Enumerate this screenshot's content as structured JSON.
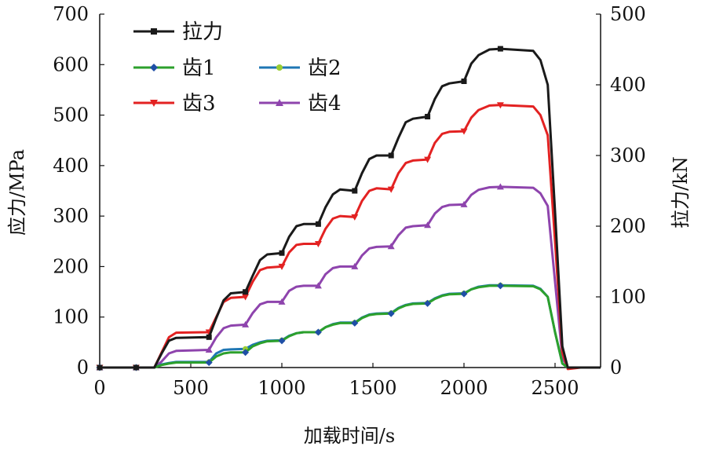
{
  "chart_data": {
    "type": "line",
    "xlabel": "加载时间/s",
    "ylabel": "应力/MPa",
    "y2label": "拉力/kN",
    "xlim": [
      0,
      2750
    ],
    "ylim": [
      0,
      700
    ],
    "y2lim": [
      0,
      500
    ],
    "x_ticks": [
      "0",
      "500",
      "1000",
      "1500",
      "2000",
      "2500"
    ],
    "y_ticks": [
      "0",
      "100",
      "200",
      "300",
      "400",
      "500",
      "600",
      "700"
    ],
    "y2_ticks": [
      "0",
      "100",
      "200",
      "300",
      "400",
      "500"
    ],
    "grid": false,
    "legend_position": "top-left",
    "series": [
      {
        "name": "拉力",
        "axis": "right",
        "color": "#1a1a1a",
        "marker": "square",
        "points": [
          [
            0,
            0
          ],
          [
            200,
            0
          ],
          [
            300,
            0
          ],
          [
            340,
            20
          ],
          [
            380,
            38
          ],
          [
            420,
            42
          ],
          [
            600,
            43
          ],
          [
            640,
            70
          ],
          [
            680,
            95
          ],
          [
            720,
            105
          ],
          [
            800,
            107
          ],
          [
            840,
            130
          ],
          [
            880,
            152
          ],
          [
            920,
            160
          ],
          [
            1000,
            162
          ],
          [
            1040,
            185
          ],
          [
            1080,
            200
          ],
          [
            1120,
            203
          ],
          [
            1200,
            203
          ],
          [
            1240,
            227
          ],
          [
            1280,
            245
          ],
          [
            1320,
            252
          ],
          [
            1400,
            250
          ],
          [
            1440,
            275
          ],
          [
            1480,
            295
          ],
          [
            1520,
            300
          ],
          [
            1600,
            300
          ],
          [
            1640,
            325
          ],
          [
            1680,
            347
          ],
          [
            1720,
            352
          ],
          [
            1800,
            355
          ],
          [
            1840,
            380
          ],
          [
            1880,
            398
          ],
          [
            1920,
            402
          ],
          [
            2000,
            405
          ],
          [
            2040,
            430
          ],
          [
            2080,
            442
          ],
          [
            2140,
            450
          ],
          [
            2200,
            451
          ],
          [
            2380,
            448
          ],
          [
            2420,
            435
          ],
          [
            2460,
            400
          ],
          [
            2500,
            220
          ],
          [
            2540,
            30
          ],
          [
            2570,
            0
          ],
          [
            2640,
            0
          ],
          [
            2750,
            0
          ]
        ]
      },
      {
        "name": "齿1",
        "axis": "left",
        "color": "#2ca02c",
        "marker": "diamond",
        "marker_color": "#1f4fa6",
        "points": [
          [
            0,
            0
          ],
          [
            200,
            0
          ],
          [
            300,
            0
          ],
          [
            340,
            5
          ],
          [
            380,
            8
          ],
          [
            420,
            10
          ],
          [
            600,
            10
          ],
          [
            640,
            22
          ],
          [
            680,
            28
          ],
          [
            720,
            30
          ],
          [
            800,
            30
          ],
          [
            840,
            42
          ],
          [
            880,
            48
          ],
          [
            920,
            52
          ],
          [
            1000,
            53
          ],
          [
            1040,
            62
          ],
          [
            1080,
            68
          ],
          [
            1120,
            70
          ],
          [
            1200,
            70
          ],
          [
            1240,
            80
          ],
          [
            1280,
            85
          ],
          [
            1320,
            88
          ],
          [
            1400,
            88
          ],
          [
            1440,
            98
          ],
          [
            1480,
            104
          ],
          [
            1520,
            106
          ],
          [
            1600,
            107
          ],
          [
            1640,
            117
          ],
          [
            1680,
            123
          ],
          [
            1720,
            126
          ],
          [
            1800,
            127
          ],
          [
            1840,
            136
          ],
          [
            1880,
            142
          ],
          [
            1920,
            145
          ],
          [
            2000,
            146
          ],
          [
            2040,
            155
          ],
          [
            2080,
            159
          ],
          [
            2140,
            162
          ],
          [
            2200,
            162
          ],
          [
            2380,
            161
          ],
          [
            2420,
            155
          ],
          [
            2460,
            140
          ],
          [
            2500,
            70
          ],
          [
            2540,
            8
          ],
          [
            2570,
            0
          ],
          [
            2640,
            0
          ],
          [
            2750,
            0
          ]
        ]
      },
      {
        "name": "齿2",
        "axis": "left",
        "color": "#1f77b4",
        "marker": "circle",
        "marker_color": "#9acd32",
        "points": [
          [
            0,
            0
          ],
          [
            200,
            0
          ],
          [
            300,
            0
          ],
          [
            340,
            6
          ],
          [
            380,
            9
          ],
          [
            420,
            11
          ],
          [
            600,
            11
          ],
          [
            640,
            28
          ],
          [
            680,
            35
          ],
          [
            720,
            36
          ],
          [
            800,
            37
          ],
          [
            840,
            45
          ],
          [
            880,
            50
          ],
          [
            920,
            53
          ],
          [
            1000,
            54
          ],
          [
            1040,
            63
          ],
          [
            1080,
            68
          ],
          [
            1120,
            70
          ],
          [
            1200,
            70
          ],
          [
            1240,
            80
          ],
          [
            1280,
            86
          ],
          [
            1320,
            89
          ],
          [
            1400,
            89
          ],
          [
            1440,
            99
          ],
          [
            1480,
            105
          ],
          [
            1520,
            107
          ],
          [
            1600,
            108
          ],
          [
            1640,
            118
          ],
          [
            1680,
            124
          ],
          [
            1720,
            127
          ],
          [
            1800,
            128
          ],
          [
            1840,
            137
          ],
          [
            1880,
            143
          ],
          [
            1920,
            146
          ],
          [
            2000,
            147
          ],
          [
            2040,
            155
          ],
          [
            2080,
            160
          ],
          [
            2140,
            163
          ],
          [
            2200,
            163
          ],
          [
            2380,
            162
          ],
          [
            2420,
            156
          ],
          [
            2460,
            140
          ],
          [
            2500,
            70
          ],
          [
            2540,
            8
          ],
          [
            2570,
            0
          ],
          [
            2640,
            0
          ],
          [
            2750,
            0
          ]
        ]
      },
      {
        "name": "齿3",
        "axis": "left",
        "color": "#e32222",
        "marker": "triangle-down",
        "points": [
          [
            0,
            0
          ],
          [
            200,
            0
          ],
          [
            300,
            0
          ],
          [
            340,
            30
          ],
          [
            380,
            60
          ],
          [
            420,
            69
          ],
          [
            600,
            70
          ],
          [
            640,
            100
          ],
          [
            680,
            130
          ],
          [
            720,
            138
          ],
          [
            800,
            140
          ],
          [
            840,
            170
          ],
          [
            880,
            193
          ],
          [
            920,
            198
          ],
          [
            1000,
            200
          ],
          [
            1040,
            228
          ],
          [
            1080,
            243
          ],
          [
            1120,
            245
          ],
          [
            1200,
            245
          ],
          [
            1240,
            275
          ],
          [
            1280,
            295
          ],
          [
            1320,
            300
          ],
          [
            1400,
            298
          ],
          [
            1440,
            330
          ],
          [
            1480,
            350
          ],
          [
            1520,
            355
          ],
          [
            1600,
            353
          ],
          [
            1640,
            385
          ],
          [
            1680,
            405
          ],
          [
            1720,
            410
          ],
          [
            1800,
            412
          ],
          [
            1840,
            445
          ],
          [
            1880,
            463
          ],
          [
            1920,
            467
          ],
          [
            2000,
            468
          ],
          [
            2040,
            495
          ],
          [
            2080,
            510
          ],
          [
            2140,
            519
          ],
          [
            2200,
            520
          ],
          [
            2380,
            517
          ],
          [
            2420,
            500
          ],
          [
            2460,
            460
          ],
          [
            2500,
            250
          ],
          [
            2540,
            30
          ],
          [
            2570,
            -3
          ],
          [
            2640,
            0
          ],
          [
            2750,
            0
          ]
        ]
      },
      {
        "name": "齿4",
        "axis": "left",
        "color": "#8e44ad",
        "marker": "triangle-up",
        "points": [
          [
            0,
            0
          ],
          [
            200,
            0
          ],
          [
            300,
            0
          ],
          [
            340,
            12
          ],
          [
            380,
            28
          ],
          [
            420,
            33
          ],
          [
            600,
            35
          ],
          [
            640,
            60
          ],
          [
            680,
            78
          ],
          [
            720,
            83
          ],
          [
            800,
            85
          ],
          [
            840,
            108
          ],
          [
            880,
            125
          ],
          [
            920,
            130
          ],
          [
            1000,
            130
          ],
          [
            1040,
            152
          ],
          [
            1080,
            160
          ],
          [
            1120,
            162
          ],
          [
            1200,
            162
          ],
          [
            1240,
            185
          ],
          [
            1280,
            197
          ],
          [
            1320,
            200
          ],
          [
            1400,
            200
          ],
          [
            1440,
            222
          ],
          [
            1480,
            236
          ],
          [
            1520,
            239
          ],
          [
            1600,
            240
          ],
          [
            1640,
            262
          ],
          [
            1680,
            277
          ],
          [
            1720,
            280
          ],
          [
            1800,
            282
          ],
          [
            1840,
            305
          ],
          [
            1880,
            318
          ],
          [
            1920,
            322
          ],
          [
            2000,
            323
          ],
          [
            2040,
            342
          ],
          [
            2080,
            352
          ],
          [
            2140,
            357
          ],
          [
            2200,
            358
          ],
          [
            2380,
            356
          ],
          [
            2420,
            345
          ],
          [
            2460,
            320
          ],
          [
            2500,
            170
          ],
          [
            2540,
            20
          ],
          [
            2570,
            0
          ],
          [
            2640,
            0
          ],
          [
            2750,
            0
          ]
        ]
      }
    ]
  }
}
